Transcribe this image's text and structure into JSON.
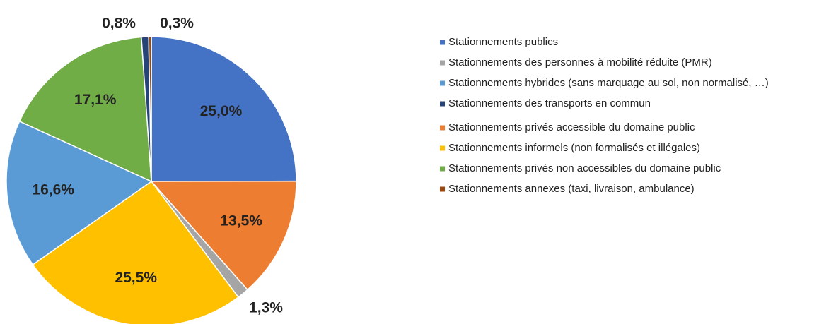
{
  "chart_data": {
    "type": "pie",
    "categories": [
      "Stationnements publics",
      "Stationnements privés accessible du domaine public",
      "Stationnements des personnes à mobilité réduite (PMR)",
      "Stationnements informels (non formalisés et illégales)",
      "Stationnements hybrides (sans marquage au sol, non normalisé, …)",
      "Stationnements privés non accessibles du domaine public",
      "Stationnements des transports en commun",
      "Stationnements annexes (taxi, livraison, ambulance)"
    ],
    "values": [
      25.0,
      13.5,
      1.3,
      25.5,
      16.6,
      17.1,
      0.8,
      0.3
    ],
    "value_labels": [
      "25,0%",
      "13,5%",
      "1,3%",
      "25,5%",
      "16,6%",
      "17,1%",
      "0,8%",
      "0,3%"
    ],
    "colors": [
      "#4472c4",
      "#ed7d31",
      "#a5a5a5",
      "#ffc000",
      "#5b9bd5",
      "#70ad47",
      "#264478",
      "#9e480e"
    ],
    "legend": "right"
  }
}
